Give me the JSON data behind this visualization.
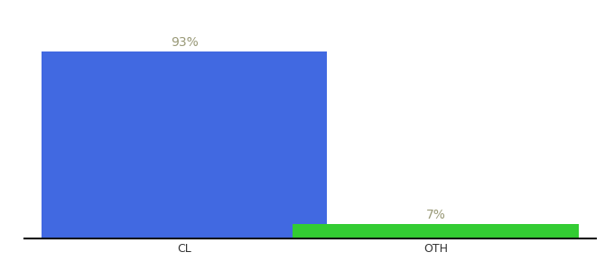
{
  "categories": [
    "CL",
    "OTH"
  ],
  "values": [
    93,
    7
  ],
  "bar_colors": [
    "#4169e1",
    "#33cc33"
  ],
  "label_texts": [
    "93%",
    "7%"
  ],
  "background_color": "#ffffff",
  "bar_width": 0.5,
  "ylim": [
    0,
    108
  ],
  "xlim": [
    0.0,
    1.0
  ],
  "x_positions": [
    0.28,
    0.72
  ],
  "label_fontsize": 10,
  "tick_fontsize": 9,
  "label_color": "#999977"
}
